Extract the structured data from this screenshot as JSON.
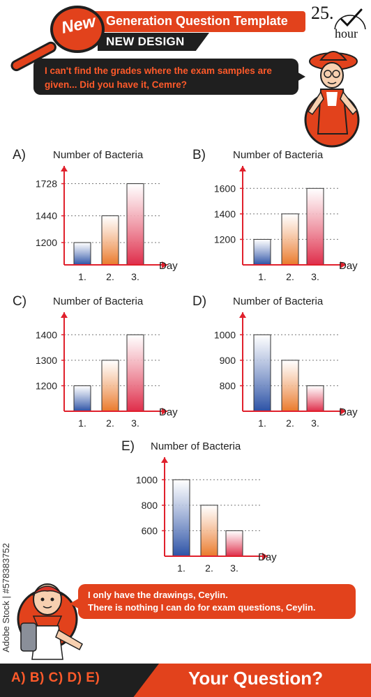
{
  "header": {
    "badge": "New",
    "title": "Generation Question Template",
    "subtitle": "NEW DESIGN",
    "timer_number": "25.",
    "timer_unit": "hour"
  },
  "speech_top": "I can't find the grades where the exam samples are given... Did you have it, Cemre?",
  "speech_bottom": {
    "line1": "I only have the drawings, Ceylin.",
    "line2": "There is nothing I can do for exam questions, Ceylin."
  },
  "stock_id": "Adobe Stock | #578383752",
  "footer": {
    "options": "A) B) C) D) E)",
    "cta": "Your Question?"
  },
  "colors": {
    "accent": "#e2421c",
    "dark": "#1f1f1f",
    "bar_day1": "#2c52a6",
    "bar_day2": "#ea7a2c",
    "bar_day3": "#df2d4a",
    "axis": "#e0202c"
  },
  "chart_data": [
    {
      "option": "A)",
      "type": "bar",
      "ylabel": "Number of Bacteria",
      "xlabel": "Day",
      "categories": [
        "1.",
        "2.",
        "3."
      ],
      "values": [
        1200,
        1440,
        1728
      ],
      "yticks": [
        "1200",
        "1440",
        "1728"
      ],
      "ylim": [
        1000,
        1800
      ]
    },
    {
      "option": "B)",
      "type": "bar",
      "ylabel": "Number of Bacteria",
      "xlabel": "Day",
      "categories": [
        "1.",
        "2.",
        "3."
      ],
      "values": [
        1200,
        1400,
        1600
      ],
      "yticks": [
        "1200",
        "1400",
        "1600"
      ],
      "ylim": [
        1000,
        1700
      ]
    },
    {
      "option": "C)",
      "type": "bar",
      "ylabel": "Number of Bacteria",
      "xlabel": "Day",
      "categories": [
        "1.",
        "2.",
        "3."
      ],
      "values": [
        1200,
        1300,
        1400
      ],
      "yticks": [
        "1200",
        "1300",
        "1400"
      ],
      "ylim": [
        1100,
        1450
      ]
    },
    {
      "option": "D)",
      "type": "bar",
      "ylabel": "Number of Bacteria",
      "xlabel": "Day",
      "categories": [
        "1.",
        "2.",
        "3."
      ],
      "values": [
        1000,
        900,
        800
      ],
      "yticks": [
        "800",
        "900",
        "1000"
      ],
      "ylim": [
        700,
        1050
      ]
    },
    {
      "option": "E)",
      "type": "bar",
      "ylabel": "Number of Bacteria",
      "xlabel": "Day",
      "categories": [
        "1.",
        "2.",
        "3."
      ],
      "values": [
        1000,
        800,
        600
      ],
      "yticks": [
        "600",
        "800",
        "1000"
      ],
      "ylim": [
        400,
        1100
      ]
    }
  ]
}
